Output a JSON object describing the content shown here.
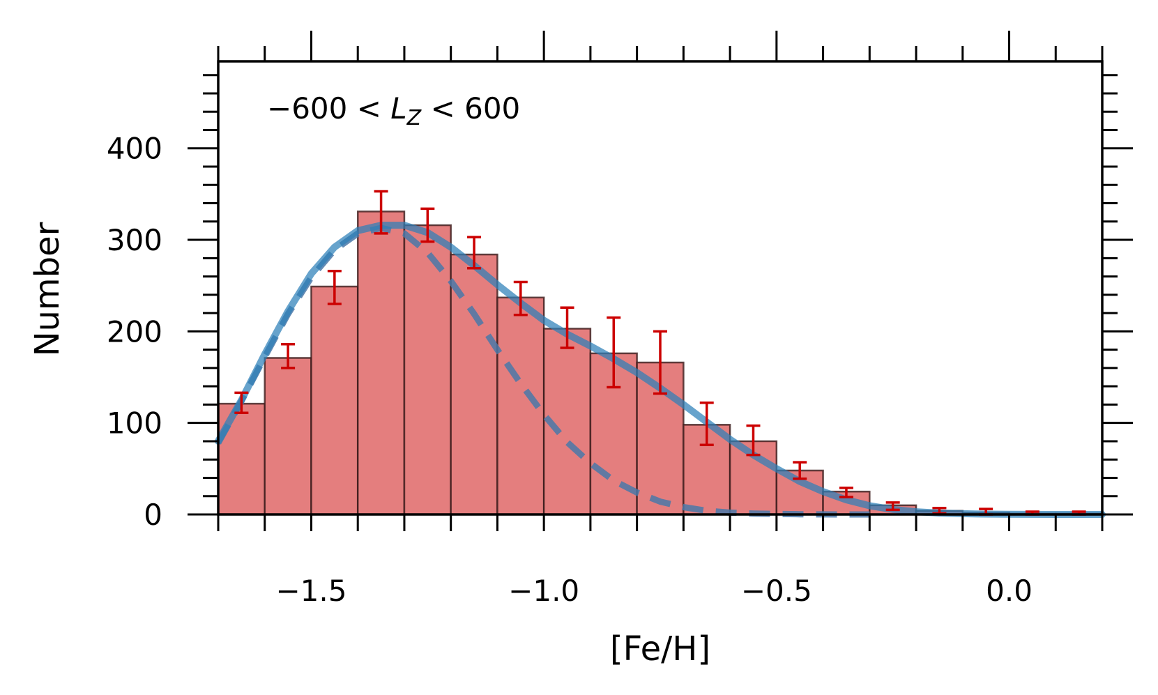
{
  "chart_data": {
    "type": "bar",
    "xlabel": "[Fe/H]",
    "ylabel": "Number",
    "annotation": {
      "prefix": "−600 < ",
      "symbol": "L",
      "subscript": "Z",
      "suffix": " < 600"
    },
    "xlim": [
      -1.7,
      0.2
    ],
    "ylim": [
      0,
      495
    ],
    "x_ticks": [
      -1.5,
      -1.0,
      -0.5,
      0.0
    ],
    "x_tick_labels": [
      "−1.5",
      "−1.0",
      "−0.5",
      "0.0"
    ],
    "y_ticks": [
      0,
      100,
      200,
      300,
      400
    ],
    "y_tick_labels": [
      "0",
      "100",
      "200",
      "300",
      "400"
    ],
    "bins": {
      "edges": [
        -1.7,
        -1.6,
        -1.5,
        -1.4,
        -1.3,
        -1.2,
        -1.1,
        -1.0,
        -0.9,
        -0.8,
        -0.7,
        -0.6,
        -0.5,
        -0.4,
        -0.3,
        -0.2,
        -0.1,
        0.0,
        0.1,
        0.2
      ],
      "counts": [
        121,
        171,
        249,
        331,
        316,
        284,
        237,
        203,
        176,
        166,
        98,
        80,
        48,
        25,
        10,
        4,
        2,
        1,
        1
      ]
    },
    "error_bars": {
      "x": [
        -1.65,
        -1.55,
        -1.45,
        -1.35,
        -1.25,
        -1.15,
        -1.05,
        -0.95,
        -0.85,
        -0.75,
        -0.65,
        -0.55,
        -0.45,
        -0.35,
        -0.25,
        -0.15,
        -0.05,
        0.05,
        0.15
      ],
      "y": [
        122,
        173,
        248,
        330,
        316,
        286,
        236,
        204,
        177,
        166,
        99,
        81,
        48,
        24,
        9,
        4,
        3,
        1,
        1
      ],
      "err": [
        11,
        13,
        18,
        23,
        18,
        17,
        18,
        22,
        38,
        34,
        23,
        16,
        9,
        5,
        4,
        3,
        3,
        2,
        2
      ]
    },
    "total_fit": {
      "x": [
        -1.7,
        -1.65,
        -1.6,
        -1.55,
        -1.5,
        -1.45,
        -1.4,
        -1.35,
        -1.3,
        -1.25,
        -1.2,
        -1.15,
        -1.1,
        -1.05,
        -1.0,
        -0.95,
        -0.9,
        -0.85,
        -0.8,
        -0.75,
        -0.7,
        -0.65,
        -0.6,
        -0.55,
        -0.5,
        -0.45,
        -0.4,
        -0.35,
        -0.3,
        -0.25,
        -0.2,
        -0.15,
        -0.1,
        -0.05,
        0.0,
        0.05,
        0.1,
        0.15,
        0.2
      ],
      "y": [
        80,
        125,
        175,
        222,
        263,
        292,
        310,
        316,
        316,
        308,
        292,
        272,
        251,
        231,
        212,
        197,
        184,
        170,
        155,
        138,
        120,
        101,
        82,
        65,
        50,
        36,
        25,
        16,
        9.5,
        5.5,
        3,
        1.5,
        0.8,
        0.4,
        0.2,
        0.1,
        0,
        0,
        0
      ]
    },
    "component_fit": {
      "x": [
        -1.7,
        -1.65,
        -1.6,
        -1.55,
        -1.5,
        -1.45,
        -1.4,
        -1.35,
        -1.3,
        -1.25,
        -1.2,
        -1.15,
        -1.1,
        -1.05,
        -1.0,
        -0.95,
        -0.9,
        -0.85,
        -0.8,
        -0.75,
        -0.7,
        -0.65,
        -0.6,
        -0.55,
        -0.5,
        -0.45,
        -0.4,
        -0.35,
        -0.3
      ],
      "y": [
        78,
        124,
        172,
        219,
        259,
        289,
        307,
        313,
        307,
        286,
        255,
        219,
        180,
        143,
        109,
        79,
        56,
        37,
        24,
        14,
        8,
        4,
        2,
        1,
        0.5,
        0.2,
        0.1,
        0,
        0
      ]
    },
    "colors": {
      "bar_fill": "#e47e7e",
      "bar_edge": "#3a1a1a",
      "error_bar": "#cc0000",
      "fit_line": "#2c7fb8",
      "component_line": "#4a78a8",
      "axes": "#000000"
    },
    "grid": false,
    "legend": "none"
  }
}
